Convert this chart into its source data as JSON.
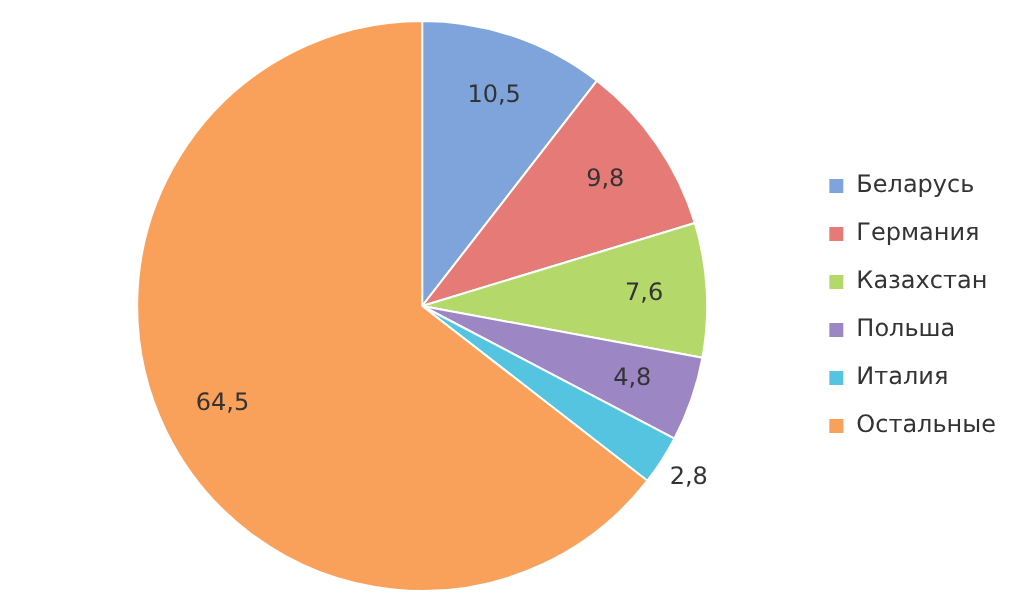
{
  "chart_data": {
    "type": "pie",
    "categories": [
      "Беларусь",
      "Германия",
      "Казахстан",
      "Польша",
      "Италия",
      "Остальные"
    ],
    "values": [
      10.5,
      9.8,
      7.6,
      4.8,
      2.8,
      64.5
    ],
    "value_labels": [
      "10,5",
      "9,8",
      "7,6",
      "4,8",
      "2,8",
      "64,5"
    ],
    "colors": [
      "#7fa4dc",
      "#e57a76",
      "#b5d86a",
      "#9c87c4",
      "#55c4e0",
      "#f9a05a"
    ],
    "legend": "right"
  }
}
